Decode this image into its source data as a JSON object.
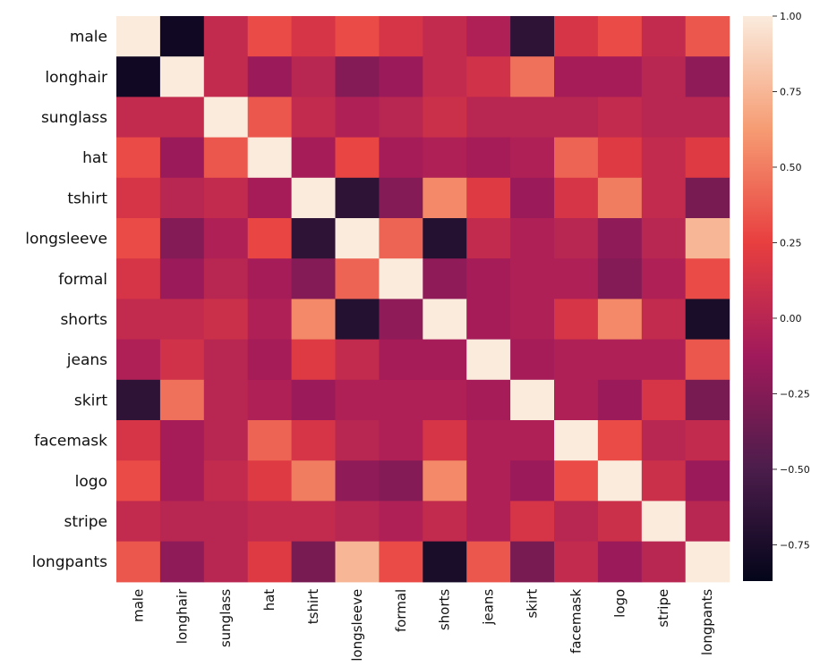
{
  "chart_data": {
    "type": "heatmap",
    "title": "",
    "xlabel": "",
    "ylabel": "",
    "labels": [
      "male",
      "longhair",
      "sunglass",
      "hat",
      "tshirt",
      "longsleeve",
      "formal",
      "shorts",
      "jeans",
      "skirt",
      "facemask",
      "logo",
      "stripe",
      "longpants"
    ],
    "matrix": [
      [
        1.0,
        -0.8,
        0.05,
        0.3,
        0.15,
        0.3,
        0.15,
        0.05,
        -0.05,
        -0.65,
        0.15,
        0.3,
        0.05,
        0.35
      ],
      [
        -0.8,
        1.0,
        0.05,
        -0.15,
        0.0,
        -0.25,
        -0.15,
        0.05,
        0.12,
        0.45,
        -0.1,
        -0.1,
        0.0,
        -0.2
      ],
      [
        0.05,
        0.05,
        1.0,
        0.35,
        0.05,
        -0.05,
        0.0,
        0.1,
        0.0,
        0.0,
        0.0,
        0.05,
        0.0,
        0.0
      ],
      [
        0.3,
        -0.15,
        0.35,
        1.0,
        -0.1,
        0.28,
        -0.1,
        -0.05,
        -0.1,
        -0.05,
        0.4,
        0.2,
        0.05,
        0.2
      ],
      [
        0.15,
        0.0,
        0.05,
        -0.1,
        1.0,
        -0.65,
        -0.25,
        0.55,
        0.2,
        -0.15,
        0.15,
        0.5,
        0.05,
        -0.3
      ],
      [
        0.3,
        -0.25,
        -0.05,
        0.28,
        -0.65,
        1.0,
        0.4,
        -0.7,
        0.05,
        -0.05,
        0.0,
        -0.2,
        0.0,
        0.75
      ],
      [
        0.15,
        -0.15,
        0.0,
        -0.1,
        -0.25,
        0.4,
        1.0,
        -0.2,
        -0.1,
        -0.05,
        -0.05,
        -0.25,
        -0.05,
        0.3
      ],
      [
        0.05,
        0.05,
        0.1,
        -0.05,
        0.55,
        -0.7,
        -0.2,
        1.0,
        -0.1,
        -0.05,
        0.15,
        0.55,
        0.05,
        -0.75
      ],
      [
        -0.05,
        0.12,
        0.0,
        -0.1,
        0.2,
        0.05,
        -0.1,
        -0.1,
        1.0,
        -0.1,
        -0.05,
        -0.05,
        -0.05,
        0.35
      ],
      [
        -0.65,
        0.45,
        0.0,
        -0.05,
        -0.15,
        -0.05,
        -0.05,
        -0.05,
        -0.1,
        1.0,
        -0.05,
        -0.15,
        0.15,
        -0.3
      ],
      [
        0.15,
        -0.1,
        0.0,
        0.4,
        0.15,
        0.0,
        -0.05,
        0.15,
        -0.05,
        -0.05,
        1.0,
        0.3,
        0.0,
        0.05
      ],
      [
        0.3,
        -0.1,
        0.05,
        0.2,
        0.5,
        -0.2,
        -0.25,
        0.55,
        -0.05,
        -0.15,
        0.3,
        1.0,
        0.1,
        -0.15
      ],
      [
        0.05,
        0.0,
        0.0,
        0.05,
        0.05,
        0.0,
        -0.05,
        0.05,
        -0.05,
        0.15,
        0.0,
        0.1,
        1.0,
        0.0
      ],
      [
        0.35,
        -0.2,
        0.0,
        0.2,
        -0.3,
        0.75,
        0.3,
        -0.75,
        0.35,
        -0.3,
        0.05,
        -0.15,
        0.0,
        1.0
      ]
    ],
    "colorbar": {
      "range": [
        -0.87,
        1.0
      ],
      "ticks": [
        1.0,
        0.75,
        0.5,
        0.25,
        0.0,
        -0.25,
        -0.5,
        -0.75
      ],
      "tick_labels": [
        "1.00",
        "0.75",
        "0.50",
        "0.25",
        "0.00",
        "−0.25",
        "−0.50",
        "−0.75"
      ],
      "colormap": "rocket",
      "stops": [
        "#03051a",
        "#4c1d4b",
        "#a11a5b",
        "#e83f3f",
        "#f69c73",
        "#faebdd"
      ]
    },
    "grid": false,
    "legend": "colorbar-right"
  }
}
